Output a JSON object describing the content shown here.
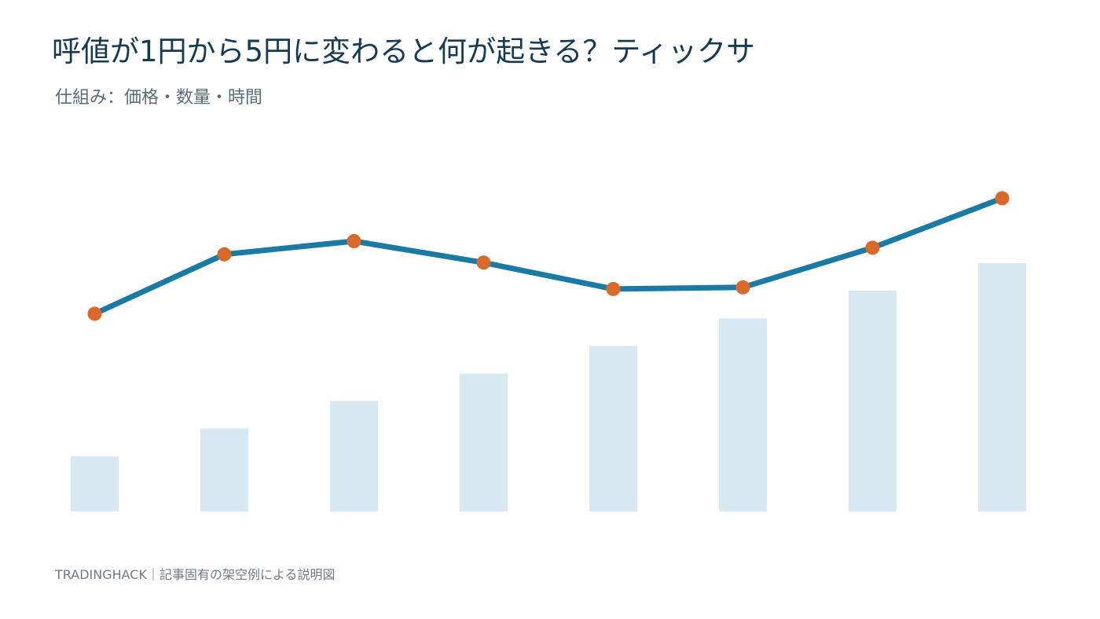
{
  "title": "呼値が1円から5円に変わると何が起きる？ティックサ",
  "subtitle": "仕組み：価格・数量・時間",
  "footer": "TRADINGHACK｜記事固有の架空例による説明図",
  "colors": {
    "bar": "#d7e8f0",
    "line": "#1a7aa3",
    "marker": "#d9692a",
    "title": "#163a52",
    "subtitle": "#5b6b78",
    "footer": "#6f7b86"
  },
  "chart_data": [
    {
      "type": "bar",
      "title": "",
      "xlabel": "",
      "ylabel": "",
      "grid": false,
      "values": [
        2,
        3,
        4,
        5,
        6,
        7,
        8,
        9
      ],
      "ylim": [
        0,
        9
      ]
    },
    {
      "type": "line",
      "title": "",
      "xlabel": "",
      "ylabel": "",
      "grid": false,
      "values": [
        4.8,
        6.6,
        7.0,
        6.35,
        5.55,
        5.6,
        6.8,
        8.3
      ],
      "ylim": [
        0,
        10
      ]
    }
  ]
}
